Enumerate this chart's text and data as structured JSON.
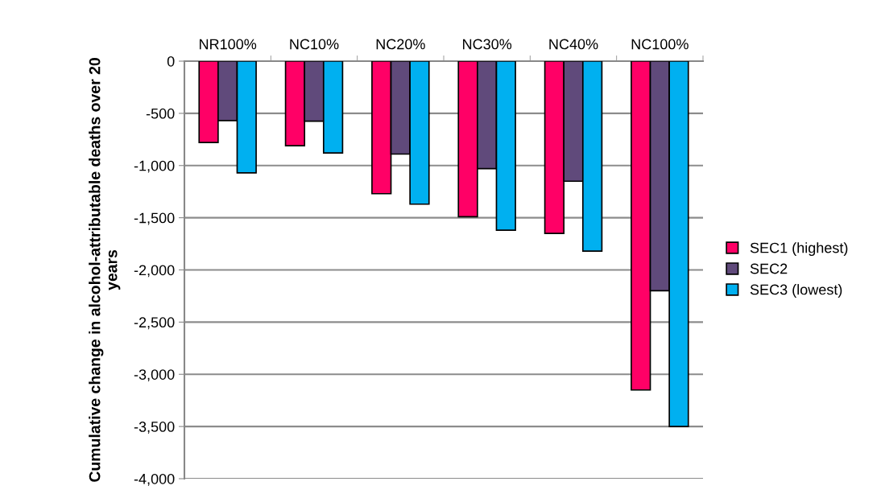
{
  "chart_data": {
    "type": "bar",
    "ylabel": "Cumulative change in alcohol-attributable deaths over 20 years",
    "categories": [
      "NR100%",
      "NC10%",
      "NC20%",
      "NC30%",
      "NC40%",
      "NC100%"
    ],
    "series": [
      {
        "name": "SEC1 (highest)",
        "color": "#ff0066",
        "values": [
          -780,
          -810,
          -1270,
          -1490,
          -1650,
          -3150
        ]
      },
      {
        "name": "SEC2",
        "color": "#604a7b",
        "values": [
          -570,
          -575,
          -890,
          -1030,
          -1150,
          -2200
        ]
      },
      {
        "name": "SEC3 (lowest)",
        "color": "#00b0f0",
        "values": [
          -1070,
          -880,
          -1370,
          -1620,
          -1820,
          -3500
        ]
      }
    ],
    "ylim": [
      -4000,
      0
    ],
    "yticks": [
      {
        "value": -4000,
        "label": "-4,000"
      },
      {
        "value": -3500,
        "label": "-3,500"
      },
      {
        "value": -3000,
        "label": "-3,000"
      },
      {
        "value": -2500,
        "label": "-2,500"
      },
      {
        "value": -2000,
        "label": "-2,000"
      },
      {
        "value": -1500,
        "label": "-1,500"
      },
      {
        "value": -1000,
        "label": "-1,000"
      },
      {
        "value": -500,
        "label": "-500"
      },
      {
        "value": 0,
        "label": "0"
      }
    ],
    "grid": "y",
    "legend": "right"
  }
}
